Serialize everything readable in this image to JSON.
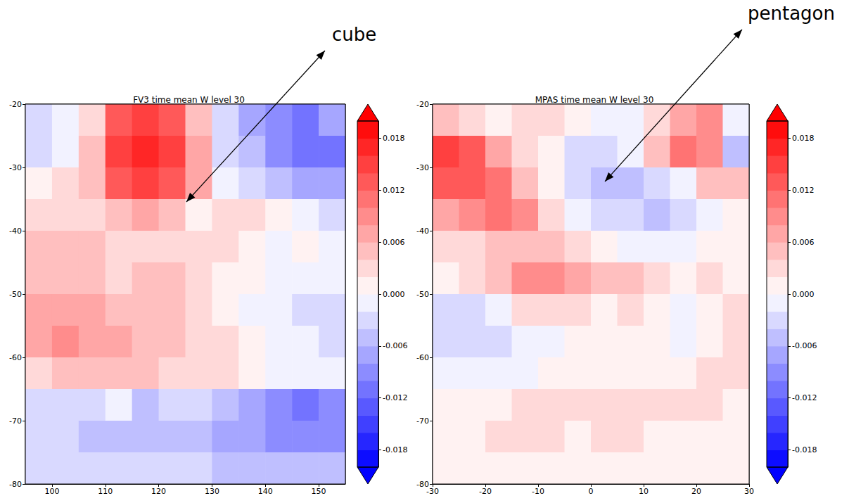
{
  "chart_data": [
    {
      "type": "heatmap",
      "title": "FV3 time mean W level 30",
      "annotation": "cube",
      "x": [
        97.5,
        102.5,
        107.5,
        112.5,
        117.5,
        122.5,
        127.5,
        132.5,
        137.5,
        142.5,
        147.5,
        152.5
      ],
      "y": [
        -22.5,
        -27.5,
        -32.5,
        -37.5,
        -42.5,
        -47.5,
        -52.5,
        -57.5,
        -62.5,
        -67.5,
        -72.5,
        -77.5
      ],
      "values": [
        [
          -0.003,
          -0.002,
          0.002,
          0.012,
          0.014,
          0.012,
          0.004,
          -0.004,
          -0.008,
          -0.01,
          -0.012,
          -0.008
        ],
        [
          -0.004,
          -0.002,
          0.004,
          0.014,
          0.016,
          0.014,
          0.006,
          -0.004,
          -0.006,
          -0.01,
          -0.012,
          -0.012
        ],
        [
          0,
          0.002,
          0.004,
          0.012,
          0.014,
          0.012,
          0.006,
          -0.002,
          -0.004,
          -0.006,
          -0.008,
          -0.008
        ],
        [
          0.002,
          0.002,
          0.002,
          0.004,
          0.006,
          0.004,
          0,
          0.002,
          0.002,
          0,
          -0.002,
          -0.004
        ],
        [
          0.004,
          0.004,
          0.004,
          0.002,
          0.002,
          0.002,
          0.002,
          0.002,
          0,
          -0.002,
          0,
          -0.002
        ],
        [
          0.004,
          0.004,
          0.004,
          0.002,
          0.004,
          0.004,
          0.002,
          0,
          0,
          -0.002,
          -0.002,
          -0.002
        ],
        [
          0.006,
          0.006,
          0.006,
          0.004,
          0.004,
          0.004,
          0.002,
          0,
          -0.002,
          -0.002,
          -0.004,
          -0.004
        ],
        [
          0.006,
          0.008,
          0.006,
          0.006,
          0.004,
          0.004,
          0.002,
          0.002,
          0,
          -0.002,
          -0.002,
          -0.004
        ],
        [
          0.002,
          0.004,
          0.004,
          0.004,
          0.004,
          0.002,
          0.002,
          0.002,
          0,
          -0.002,
          -0.002,
          -0.002
        ],
        [
          -0.004,
          -0.004,
          -0.004,
          -0.002,
          -0.006,
          -0.004,
          -0.004,
          -0.006,
          -0.008,
          -0.01,
          -0.012,
          -0.01
        ],
        [
          -0.004,
          -0.004,
          -0.006,
          -0.006,
          -0.006,
          -0.006,
          -0.006,
          -0.008,
          -0.008,
          -0.01,
          -0.01,
          -0.01
        ],
        [
          -0.004,
          -0.004,
          -0.004,
          -0.004,
          -0.004,
          -0.004,
          -0.004,
          -0.006,
          -0.006,
          -0.006,
          -0.006,
          -0.006
        ]
      ],
      "xlim": [
        95,
        155
      ],
      "ylim": [
        -80,
        -20
      ],
      "xticks": [
        100,
        110,
        120,
        130,
        140,
        150
      ],
      "yticks": [
        -80,
        -70,
        -60,
        -50,
        -40,
        -30,
        -20
      ],
      "colorbar": {
        "range": [
          -0.02,
          0.02
        ],
        "levels": [
          -0.02,
          -0.018,
          -0.016,
          -0.014,
          -0.012,
          -0.01,
          -0.008,
          -0.006,
          -0.004,
          -0.002,
          0,
          0.002,
          0.004,
          0.006,
          0.008,
          0.01,
          0.012,
          0.014,
          0.016,
          0.018,
          0.02
        ],
        "ticks": [
          -0.018,
          -0.012,
          -0.006,
          {
            "value": 0,
            "label": "0.000"
          },
          0.006,
          0.012,
          0.018
        ]
      }
    },
    {
      "type": "heatmap",
      "title": "MPAS time mean W level 30",
      "annotation": "pentagon",
      "x": [
        -27.5,
        -22.5,
        -17.5,
        -12.5,
        -7.5,
        -2.5,
        2.5,
        7.5,
        12.5,
        17.5,
        22.5,
        27.5
      ],
      "y": [
        -22.5,
        -27.5,
        -32.5,
        -37.5,
        -42.5,
        -47.5,
        -52.5,
        -57.5,
        -62.5,
        -67.5,
        -72.5,
        -77.5
      ],
      "values": [
        [
          0.004,
          0.002,
          0,
          0.002,
          0.002,
          0,
          -0.002,
          -0.002,
          0.002,
          0.006,
          0.008,
          -0.002
        ],
        [
          0.014,
          0.012,
          0.006,
          0.002,
          0,
          -0.004,
          -0.004,
          -0.002,
          0.004,
          0.01,
          0.008,
          -0.006
        ],
        [
          0.012,
          0.012,
          0.01,
          0.004,
          0,
          -0.004,
          -0.006,
          -0.006,
          -0.004,
          -0.002,
          0.004,
          0.004
        ],
        [
          0.006,
          0.008,
          0.01,
          0.008,
          0.002,
          -0.002,
          -0.004,
          -0.004,
          -0.006,
          -0.004,
          -0.002,
          0
        ],
        [
          0.002,
          0.002,
          0.004,
          0.004,
          0.004,
          0.002,
          0,
          -0.002,
          -0.002,
          -0.002,
          0,
          0
        ],
        [
          0,
          0.002,
          0.004,
          0.008,
          0.008,
          0.006,
          0.004,
          0.004,
          0.002,
          0,
          0.002,
          0
        ],
        [
          -0.004,
          -0.004,
          -0.002,
          0.002,
          0.002,
          0.002,
          0,
          0.002,
          0,
          -0.002,
          0,
          0.002
        ],
        [
          -0.004,
          -0.004,
          -0.004,
          -0.002,
          -0.002,
          0,
          0,
          0,
          0,
          -0.002,
          0,
          0.002
        ],
        [
          -0.002,
          -0.002,
          -0.002,
          -0.002,
          0,
          0,
          0,
          0,
          0,
          0,
          0.002,
          0.002
        ],
        [
          0,
          0,
          0,
          0.002,
          0.002,
          0.002,
          0.002,
          0.002,
          0.002,
          0.002,
          0.002,
          0
        ],
        [
          0,
          0,
          0.002,
          0.002,
          0.002,
          0,
          0.002,
          0.002,
          0,
          0,
          0,
          0
        ],
        [
          0,
          0,
          0,
          0,
          0,
          0,
          0,
          0,
          0,
          0,
          0,
          0
        ]
      ],
      "xlim": [
        -30,
        30
      ],
      "ylim": [
        -80,
        -20
      ],
      "xticks": [
        -30,
        -20,
        -10,
        0,
        10,
        20,
        30
      ],
      "yticks": [
        -80,
        -70,
        -60,
        -50,
        -40,
        -30,
        -20
      ],
      "colorbar": {
        "range": [
          -0.02,
          0.02
        ],
        "levels": [
          -0.02,
          -0.018,
          -0.016,
          -0.014,
          -0.012,
          -0.01,
          -0.008,
          -0.006,
          -0.004,
          -0.002,
          0,
          0.002,
          0.004,
          0.006,
          0.008,
          0.01,
          0.012,
          0.014,
          0.016,
          0.018,
          0.02
        ],
        "ticks": [
          -0.018,
          -0.012,
          -0.006,
          {
            "value": 0,
            "label": "0.000"
          },
          0.006,
          0.012,
          0.018
        ]
      }
    }
  ]
}
